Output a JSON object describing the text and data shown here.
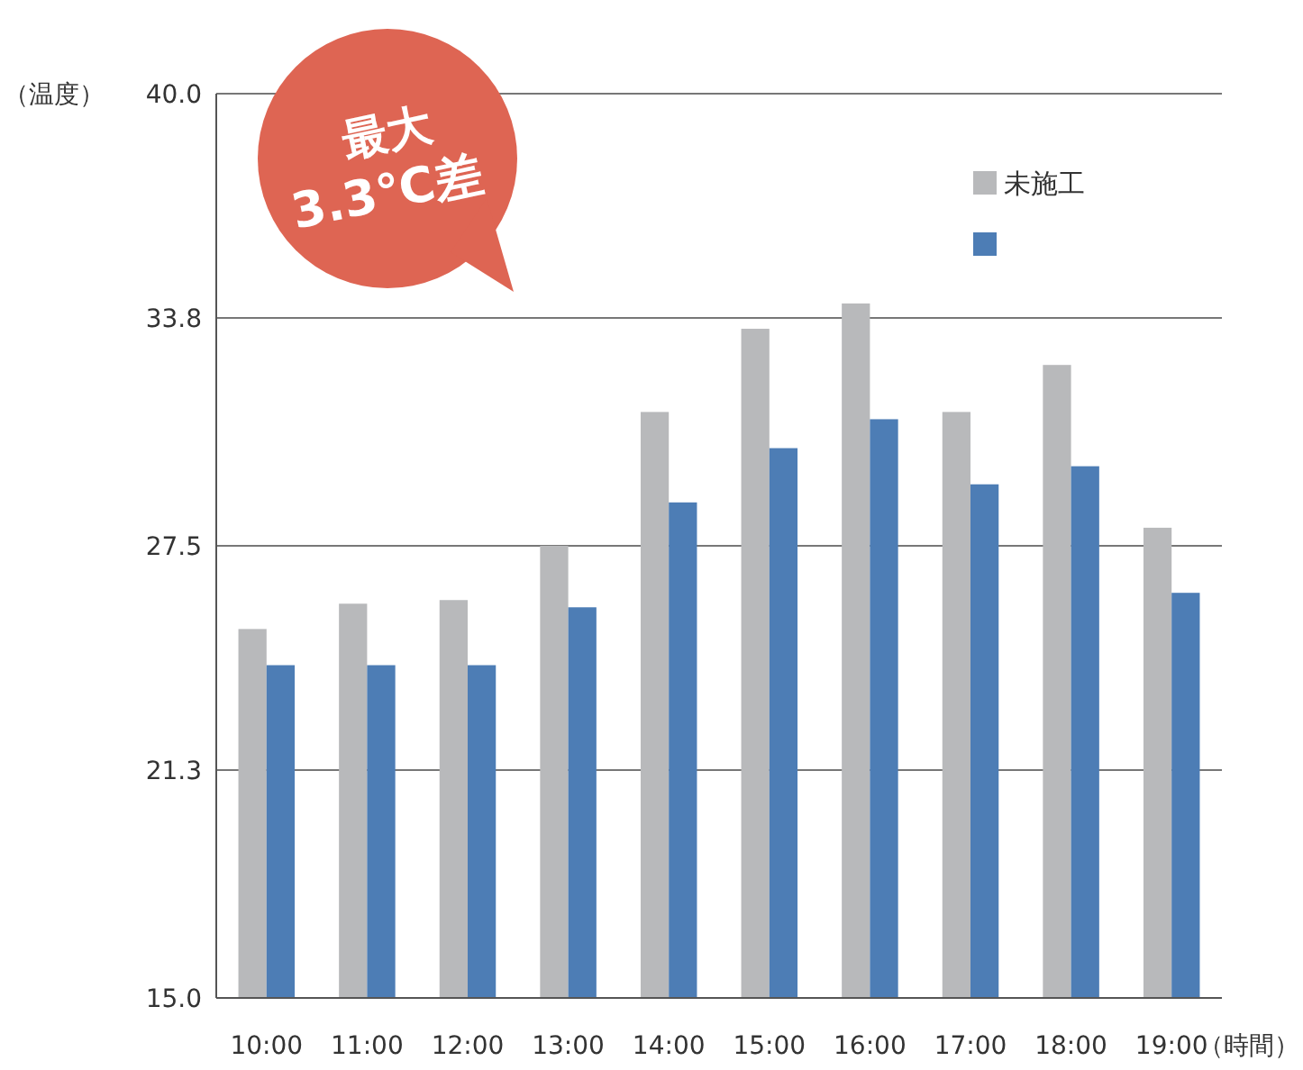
{
  "chart_data": {
    "type": "bar",
    "ylabel": "（温度）",
    "xlabel": "（時間）",
    "categories": [
      "10:00",
      "11:00",
      "12:00",
      "13:00",
      "14:00",
      "15:00",
      "16:00",
      "17:00",
      "18:00",
      "19:00"
    ],
    "series": [
      {
        "name": "未施工",
        "color": "#b8b9bb",
        "values": [
          25.2,
          25.9,
          26.0,
          27.5,
          31.2,
          33.5,
          34.2,
          31.2,
          32.5,
          28.0
        ]
      },
      {
        "color": "#4d7db5",
        "values": [
          24.2,
          24.2,
          24.2,
          25.8,
          28.7,
          30.2,
          31.0,
          29.2,
          29.7,
          26.2
        ]
      }
    ],
    "ylim": [
      15,
      40
    ],
    "yticks": [
      {
        "value": 15,
        "label": "15.0"
      },
      21.3,
      27.5,
      33.8,
      {
        "value": 40,
        "label": "40.0"
      }
    ],
    "grid": "y",
    "legend": "top right",
    "annotations": [
      "最大",
      "3.3℃差"
    ]
  }
}
